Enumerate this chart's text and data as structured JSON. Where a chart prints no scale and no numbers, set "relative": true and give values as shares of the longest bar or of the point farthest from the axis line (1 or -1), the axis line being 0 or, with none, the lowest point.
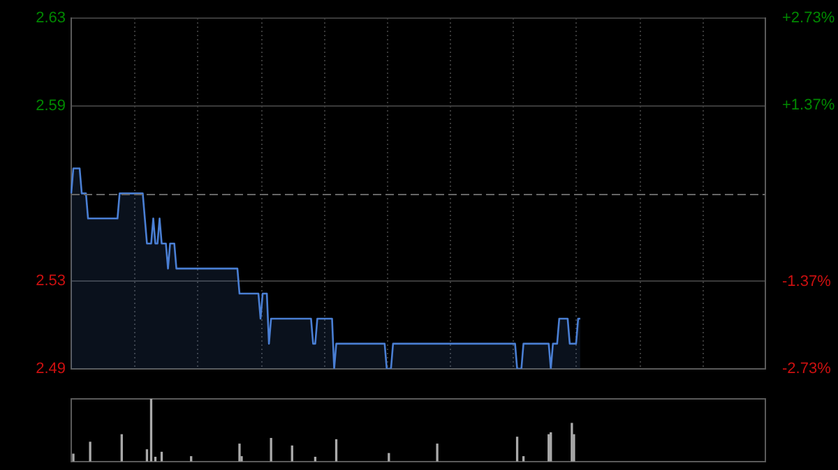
{
  "chart_data": [
    {
      "type": "area",
      "categories": [
        null,
        null,
        null,
        null,
        null,
        null,
        null,
        null,
        null,
        null,
        null,
        null,
        null,
        null,
        null,
        null,
        null,
        null,
        null,
        null,
        null,
        null,
        null,
        null,
        null,
        null,
        null,
        null,
        null,
        null,
        null,
        null,
        null,
        null,
        null,
        null,
        null,
        null,
        null,
        null,
        null,
        null,
        null,
        null,
        null,
        null,
        null,
        null,
        null,
        null,
        null,
        null,
        null,
        null,
        null,
        null,
        null,
        null,
        null,
        null,
        null,
        null,
        null,
        null,
        null,
        null,
        null,
        null,
        null,
        null,
        null,
        null,
        null,
        null,
        null,
        null,
        null,
        null,
        null,
        null,
        null,
        null,
        null,
        null,
        null,
        null,
        null,
        null,
        null,
        null,
        null,
        null,
        null,
        null,
        null,
        null,
        null,
        null,
        null,
        null,
        null,
        null,
        null,
        null,
        null,
        null,
        null,
        null,
        null,
        null,
        null,
        null,
        null,
        null,
        null,
        null,
        null,
        null,
        null,
        null,
        null,
        null,
        null,
        null,
        null,
        null,
        null,
        null,
        null,
        null,
        null,
        null,
        null,
        null,
        null,
        null,
        null,
        null,
        null,
        null,
        null,
        null,
        null,
        null,
        null,
        null,
        null,
        null,
        null,
        null,
        null,
        null,
        null,
        null,
        null,
        null,
        null,
        null,
        null,
        null,
        null,
        null,
        null,
        null,
        null,
        null,
        null,
        null,
        null,
        null,
        null,
        null,
        null,
        null,
        null,
        null,
        null,
        null,
        null,
        null,
        null,
        null,
        null,
        null,
        null,
        null,
        null,
        null,
        null,
        null,
        null,
        null,
        null,
        null,
        null,
        null,
        null,
        null,
        null,
        null,
        null,
        null,
        null,
        null,
        null,
        null,
        null,
        null,
        null,
        null,
        null,
        null,
        null,
        null,
        null,
        null,
        null,
        null,
        null,
        null,
        null,
        null,
        null,
        null,
        null,
        null,
        null,
        null,
        null,
        null,
        null,
        null,
        null,
        null,
        null,
        null,
        null,
        null,
        null,
        null,
        null,
        null,
        null,
        null,
        null,
        null,
        null,
        null,
        null,
        null,
        null,
        null,
        null,
        null,
        null,
        null,
        null,
        null,
        null,
        null,
        null,
        null,
        null,
        null,
        null,
        null,
        null,
        null,
        null,
        null,
        null,
        null,
        null,
        null,
        null,
        null,
        null,
        null,
        null,
        null,
        null,
        null,
        null,
        null,
        null,
        null,
        null,
        null,
        null,
        null,
        null,
        null,
        null,
        null,
        null,
        null,
        null,
        null,
        null,
        null,
        null,
        null,
        null,
        null,
        null,
        null,
        null,
        null,
        null,
        null,
        null,
        null,
        null,
        null,
        null,
        null,
        null,
        null,
        null,
        null,
        null,
        null,
        null,
        null,
        null,
        null,
        null,
        null,
        null,
        null,
        null
      ],
      "series": [
        {
          "color": "#4a7fd4",
          "values": [
            2.56,
            2.57,
            2.57,
            2.57,
            2.57,
            2.56,
            2.56,
            2.56,
            2.55,
            2.55,
            2.55,
            2.55,
            2.55,
            2.55,
            2.55,
            2.55,
            2.55,
            2.55,
            2.55,
            2.55,
            2.55,
            2.55,
            2.55,
            2.56,
            2.56,
            2.56,
            2.56,
            2.56,
            2.56,
            2.56,
            2.56,
            2.56,
            2.56,
            2.56,
            2.56,
            2.55,
            2.54,
            2.54,
            2.54,
            2.55,
            2.54,
            2.54,
            2.55,
            2.54,
            2.54,
            2.54,
            2.53,
            2.54,
            2.54,
            2.54,
            2.53,
            2.53,
            2.53,
            2.53,
            2.53,
            2.53,
            2.53,
            2.53,
            2.53,
            2.53,
            2.53,
            2.53,
            2.53,
            2.53,
            2.53,
            2.53,
            2.53,
            2.53,
            2.53,
            2.53,
            2.53,
            2.53,
            2.53,
            2.53,
            2.53,
            2.53,
            2.53,
            2.53,
            2.53,
            2.53,
            2.52,
            2.52,
            2.52,
            2.52,
            2.52,
            2.52,
            2.52,
            2.52,
            2.52,
            2.52,
            2.51,
            2.52,
            2.52,
            2.52,
            2.5,
            2.51,
            2.51,
            2.51,
            2.51,
            2.51,
            2.51,
            2.51,
            2.51,
            2.51,
            2.51,
            2.51,
            2.51,
            2.51,
            2.51,
            2.51,
            2.51,
            2.51,
            2.51,
            2.51,
            2.51,
            2.5,
            2.5,
            2.51,
            2.51,
            2.51,
            2.51,
            2.51,
            2.51,
            2.51,
            2.51,
            2.49,
            2.5,
            2.5,
            2.5,
            2.5,
            2.5,
            2.5,
            2.5,
            2.5,
            2.5,
            2.5,
            2.5,
            2.5,
            2.5,
            2.5,
            2.5,
            2.5,
            2.5,
            2.5,
            2.5,
            2.5,
            2.5,
            2.5,
            2.5,
            2.5,
            2.49,
            2.49,
            2.49,
            2.5,
            2.5,
            2.5,
            2.5,
            2.5,
            2.5,
            2.5,
            2.5,
            2.5,
            2.5,
            2.5,
            2.5,
            2.5,
            2.5,
            2.5,
            2.5,
            2.5,
            2.5,
            2.5,
            2.5,
            2.5,
            2.5,
            2.5,
            2.5,
            2.5,
            2.5,
            2.5,
            2.5,
            2.5,
            2.5,
            2.5,
            2.5,
            2.5,
            2.5,
            2.5,
            2.5,
            2.5,
            2.5,
            2.5,
            2.5,
            2.5,
            2.5,
            2.5,
            2.5,
            2.5,
            2.5,
            2.5,
            2.5,
            2.5,
            2.5,
            2.5,
            2.5,
            2.5,
            2.5,
            2.5,
            2.5,
            2.5,
            2.5,
            2.5,
            2.49,
            2.49,
            2.49,
            2.5,
            2.5,
            2.5,
            2.5,
            2.5,
            2.5,
            2.5,
            2.5,
            2.5,
            2.5,
            2.5,
            2.5,
            2.5,
            2.49,
            2.5,
            2.5,
            2.5,
            2.51,
            2.51,
            2.51,
            2.51,
            2.51,
            2.5,
            2.5,
            2.5,
            2.5,
            2.51,
            2.51,
            null,
            null,
            null,
            null,
            null,
            null,
            null,
            null,
            null,
            null,
            null,
            null,
            null,
            null,
            null,
            null,
            null,
            null,
            null,
            null,
            null,
            null,
            null,
            null,
            null,
            null,
            null,
            null,
            null,
            null,
            null,
            null,
            null,
            null,
            null,
            null,
            null,
            null,
            null,
            null,
            null,
            null,
            null,
            null,
            null,
            null,
            null,
            null,
            null,
            null,
            null,
            null,
            null,
            null,
            null,
            null,
            null,
            null,
            null,
            null,
            null,
            null,
            null,
            null,
            null,
            null,
            null,
            null,
            null,
            null,
            null,
            null,
            null,
            null,
            null,
            null,
            null,
            null,
            null,
            null,
            null,
            null,
            null,
            null,
            null,
            null,
            null,
            null
          ]
        }
      ],
      "ylim": [
        2.49,
        2.63
      ],
      "yticks": [
        {
          "value": 2.49,
          "label": "2.49"
        },
        {
          "value": 2.525,
          "label": "2.53"
        },
        {
          "value": 2.595,
          "label": "2.59"
        },
        {
          "value": 2.63,
          "label": "2.63"
        }
      ],
      "y2lim": [
        -2.73,
        2.73
      ],
      "y2ticks": [
        {
          "value": -2.73,
          "label": "-2.73%"
        },
        {
          "value": -1.37,
          "label": "-1.37%"
        },
        {
          "value": 1.37,
          "label": "+1.37%"
        },
        {
          "value": 2.73,
          "label": "+2.73%"
        }
      ],
      "ref_lines": [
        {
          "axis": "y",
          "value": 2.56,
          "color": "#666666",
          "line_style": "dashed"
        }
      ],
      "grid": true,
      "tick_labels": "y"
    },
    {
      "type": "bar",
      "relative": true,
      "categories": [
        null,
        null,
        null,
        null,
        null,
        null,
        null,
        null,
        null,
        null,
        null,
        null,
        null,
        null,
        null,
        null,
        null,
        null,
        null,
        null,
        null,
        null,
        null,
        null,
        null,
        null,
        null,
        null,
        null,
        null,
        null,
        null,
        null,
        null,
        null,
        null,
        null,
        null,
        null,
        null,
        null,
        null,
        null,
        null,
        null,
        null,
        null,
        null,
        null,
        null,
        null,
        null,
        null,
        null,
        null,
        null,
        null,
        null,
        null,
        null,
        null,
        null,
        null,
        null,
        null,
        null,
        null,
        null,
        null,
        null,
        null,
        null,
        null,
        null,
        null,
        null,
        null,
        null,
        null,
        null,
        null,
        null,
        null,
        null,
        null,
        null,
        null,
        null,
        null,
        null,
        null,
        null,
        null,
        null,
        null,
        null,
        null,
        null,
        null,
        null,
        null,
        null,
        null,
        null,
        null,
        null,
        null,
        null,
        null,
        null,
        null,
        null,
        null,
        null,
        null,
        null,
        null,
        null,
        null,
        null,
        null,
        null,
        null,
        null,
        null,
        null,
        null,
        null,
        null,
        null,
        null,
        null,
        null,
        null,
        null,
        null,
        null,
        null,
        null,
        null,
        null,
        null,
        null,
        null,
        null,
        null,
        null,
        null,
        null,
        null,
        null,
        null,
        null,
        null,
        null,
        null,
        null,
        null,
        null,
        null,
        null,
        null,
        null,
        null,
        null,
        null,
        null,
        null,
        null,
        null,
        null,
        null,
        null,
        null,
        null,
        null,
        null,
        null,
        null,
        null,
        null,
        null,
        null,
        null,
        null,
        null,
        null,
        null,
        null,
        null,
        null,
        null,
        null,
        null,
        null,
        null,
        null,
        null,
        null,
        null,
        null,
        null,
        null,
        null,
        null,
        null,
        null,
        null,
        null,
        null,
        null,
        null,
        null,
        null,
        null,
        null,
        null,
        null,
        null,
        null,
        null,
        null,
        null,
        null,
        null,
        null,
        null,
        null,
        null,
        null,
        null,
        null,
        null,
        null,
        null,
        null,
        null,
        null,
        null,
        null,
        null,
        null,
        null,
        null,
        null,
        null,
        null,
        null,
        null,
        null,
        null,
        null,
        null,
        null,
        null,
        null,
        null,
        null,
        null,
        null,
        null,
        null,
        null,
        null,
        null,
        null,
        null,
        null,
        null,
        null,
        null,
        null,
        null,
        null,
        null,
        null,
        null,
        null,
        null,
        null,
        null,
        null,
        null,
        null,
        null,
        null,
        null,
        null,
        null,
        null,
        null,
        null,
        null,
        null,
        null,
        null,
        null,
        null,
        null,
        null,
        null,
        null,
        null,
        null,
        null,
        null,
        null,
        null,
        null,
        null,
        null,
        null,
        null,
        null,
        null,
        null,
        null,
        null,
        null,
        null,
        null,
        null,
        null,
        null,
        null,
        null,
        null,
        null,
        null,
        null,
        null
      ],
      "series": [
        {
          "color": "#aaaaaa",
          "values": [
            null,
            0.12,
            null,
            null,
            null,
            null,
            null,
            null,
            null,
            0.31,
            null,
            null,
            null,
            null,
            null,
            null,
            null,
            null,
            null,
            null,
            null,
            null,
            null,
            null,
            0.43,
            null,
            null,
            null,
            null,
            null,
            null,
            null,
            null,
            null,
            null,
            null,
            0.19,
            null,
            1,
            null,
            0.07,
            null,
            null,
            0.15,
            null,
            null,
            null,
            null,
            null,
            null,
            null,
            null,
            null,
            null,
            null,
            null,
            null,
            0.08,
            null,
            null,
            null,
            null,
            null,
            null,
            null,
            null,
            null,
            null,
            null,
            null,
            null,
            null,
            null,
            null,
            null,
            null,
            null,
            null,
            null,
            null,
            0.28,
            0.08,
            null,
            null,
            null,
            null,
            null,
            null,
            null,
            null,
            null,
            null,
            null,
            null,
            null,
            0.37,
            null,
            null,
            null,
            null,
            null,
            null,
            null,
            null,
            null,
            0.25,
            null,
            null,
            null,
            null,
            null,
            null,
            null,
            null,
            null,
            null,
            0.07,
            null,
            null,
            null,
            null,
            null,
            null,
            null,
            null,
            null,
            0.35,
            null,
            null,
            null,
            null,
            null,
            null,
            null,
            null,
            null,
            null,
            null,
            null,
            null,
            null,
            null,
            null,
            null,
            null,
            null,
            null,
            null,
            null,
            null,
            null,
            0.13,
            null,
            null,
            null,
            null,
            null,
            null,
            null,
            null,
            null,
            null,
            null,
            null,
            null,
            null,
            null,
            null,
            null,
            null,
            null,
            null,
            null,
            null,
            0.28,
            null,
            null,
            null,
            null,
            null,
            null,
            null,
            null,
            null,
            null,
            null,
            null,
            null,
            null,
            null,
            null,
            null,
            null,
            null,
            null,
            null,
            null,
            null,
            null,
            null,
            null,
            null,
            null,
            null,
            null,
            null,
            null,
            null,
            null,
            null,
            null,
            null,
            0.39,
            null,
            null,
            0.08,
            null,
            null,
            null,
            null,
            null,
            null,
            null,
            null,
            null,
            null,
            null,
            0.43,
            0.46,
            null,
            null,
            null,
            null,
            null,
            null,
            null,
            null,
            null,
            0.61,
            0.43,
            null,
            null,
            null,
            null,
            null,
            null,
            null,
            null,
            null,
            null,
            null,
            null,
            null,
            null,
            null,
            null,
            null,
            null,
            null,
            null,
            null,
            null,
            null,
            null,
            null,
            null,
            null,
            null,
            null,
            null,
            null,
            null,
            null,
            null,
            null,
            null,
            null,
            null,
            null,
            null,
            null,
            null,
            null,
            null,
            null,
            null,
            null,
            null,
            null,
            null,
            null,
            null,
            null,
            null,
            null,
            null,
            null,
            null,
            null,
            null,
            null,
            null,
            null,
            null,
            null,
            null,
            null,
            null,
            null,
            null,
            null,
            null,
            null,
            null,
            null,
            null,
            null,
            null,
            null,
            null,
            null,
            null,
            null,
            null,
            null,
            null,
            null,
            null,
            null,
            null,
            null
          ]
        }
      ],
      "tick_labels": false
    }
  ]
}
